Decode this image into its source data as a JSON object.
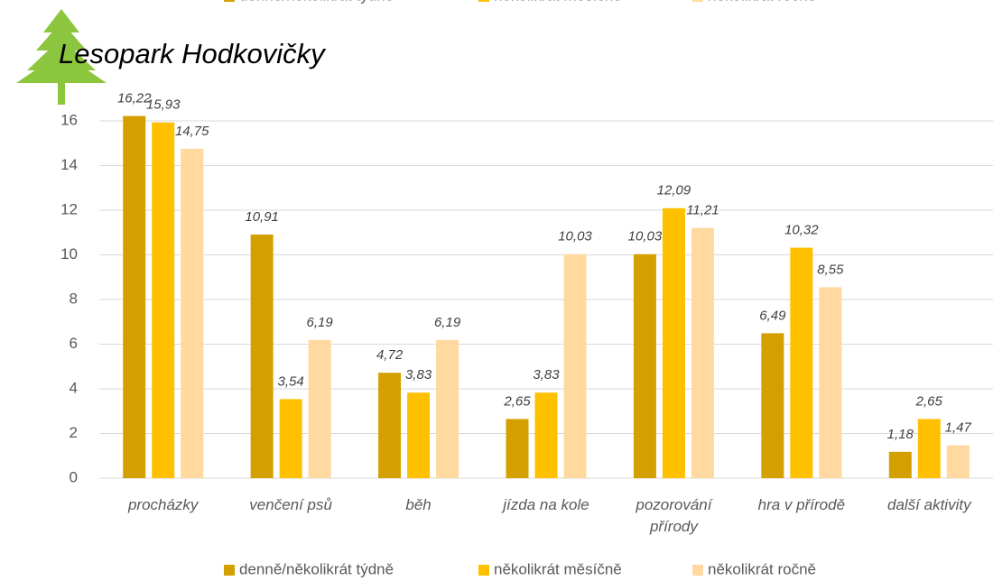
{
  "chart_data": {
    "type": "bar",
    "title": "Lesopark Hodkovičky",
    "categories": [
      "procházky",
      "venčení psů",
      "běh",
      "jízda na kole",
      "pozorování přírody",
      "hra v přírodě",
      "další aktivity"
    ],
    "series": [
      {
        "name": "denně/několikrát týdně",
        "color": "#d4a000",
        "values": [
          16.22,
          10.91,
          4.72,
          2.65,
          10.03,
          6.49,
          1.18
        ],
        "value_labels": [
          "16,22",
          "10,91",
          "4,72",
          "2,65",
          "10,03",
          "6,49",
          "1,18"
        ]
      },
      {
        "name": "několikrát měsíčně",
        "color": "#ffc000",
        "values": [
          15.93,
          3.54,
          3.83,
          3.83,
          12.09,
          10.32,
          2.65
        ],
        "value_labels": [
          "15,93",
          "3,54",
          "3,83",
          "3,83",
          "12,09",
          "10,32",
          "2,65"
        ]
      },
      {
        "name": "několikrát ročně",
        "color": "#ffd9a0",
        "values": [
          14.75,
          6.19,
          6.19,
          10.03,
          11.21,
          8.55,
          1.47
        ],
        "value_labels": [
          "14,75",
          "6,19",
          "6,19",
          "10,03",
          "11,21",
          "8,55",
          "1,47"
        ]
      }
    ],
    "ylim": [
      0,
      17
    ],
    "yticks": [
      0,
      2,
      4,
      6,
      8,
      10,
      12,
      14,
      16
    ],
    "grid": true
  }
}
